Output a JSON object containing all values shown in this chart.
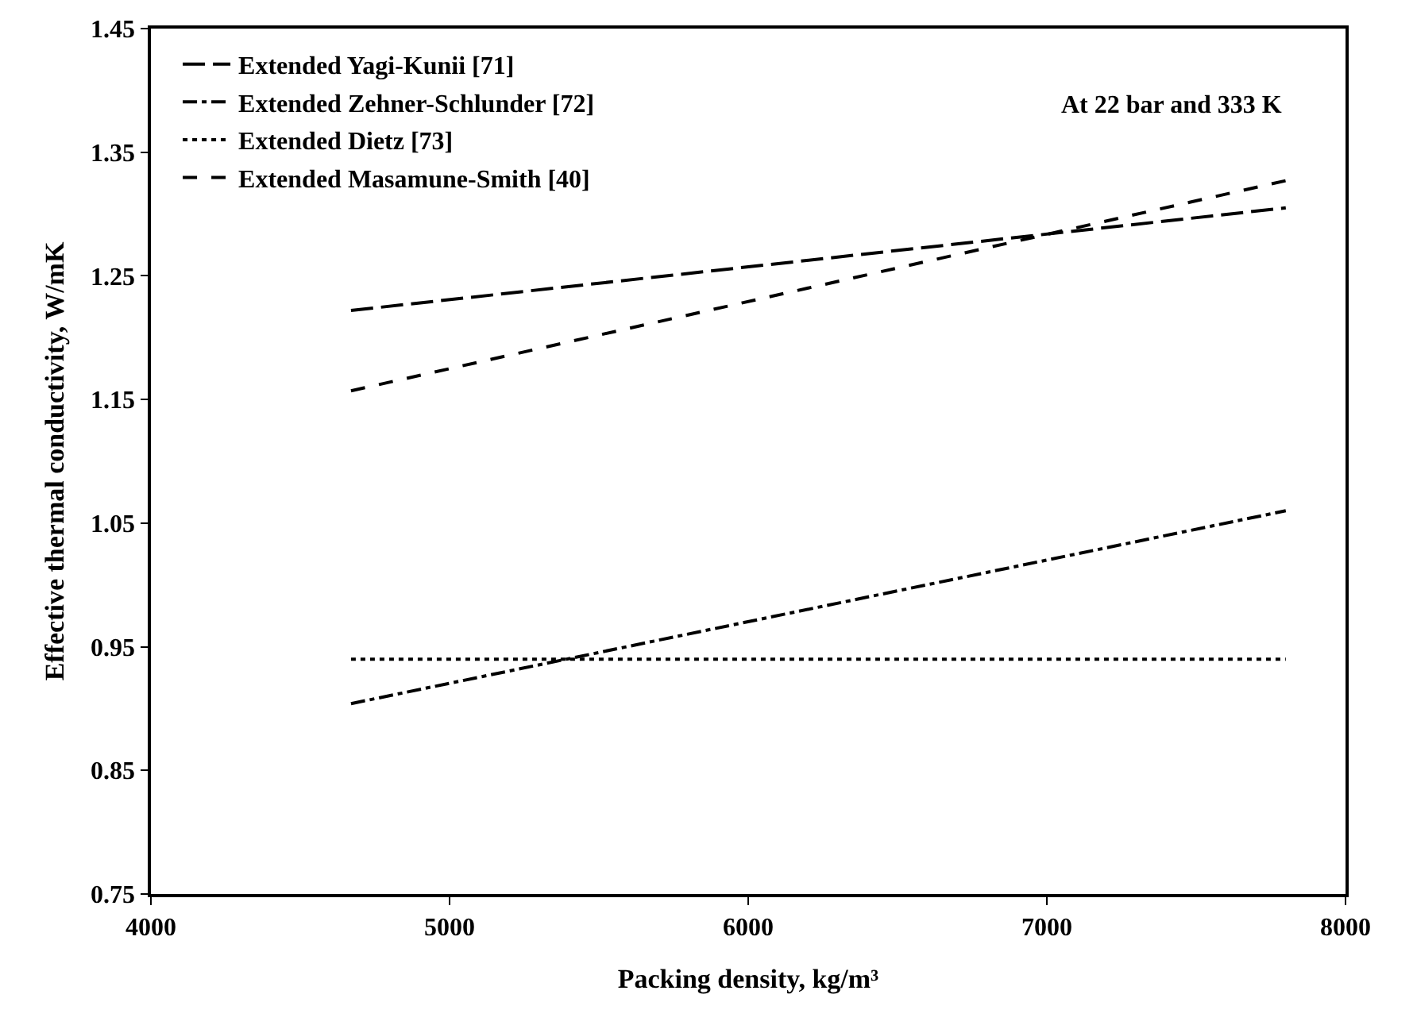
{
  "chart_data": {
    "type": "line",
    "xlabel": "Packing density, kg/m³",
    "ylabel": "Effective thermal conductivity, W/mK",
    "xlim": [
      4000,
      8000
    ],
    "xticks": [
      4000,
      5000,
      6000,
      7000,
      8000
    ],
    "ylim": [
      0.75,
      1.45
    ],
    "yticks": [
      {
        "value": 0.75,
        "label": "0.75"
      },
      {
        "value": 0.85,
        "label": "0.85"
      },
      {
        "value": 0.95,
        "label": "0.95"
      },
      {
        "value": 1.05,
        "label": "1.05"
      },
      {
        "value": 1.15,
        "label": "1.15"
      },
      {
        "value": 1.25,
        "label": "1.25"
      },
      {
        "value": 1.35,
        "label": "1.35"
      },
      {
        "value": 1.45,
        "label": "1.45"
      }
    ],
    "x": [
      4670,
      7800
    ],
    "series": [
      {
        "name": "Extended Yagi-Kunii [71]",
        "color": "#000000",
        "line_style": "longdash",
        "values": [
          1.222,
          1.305
        ]
      },
      {
        "name": "Extended Zehner-Schlunder [72]",
        "color": "#000000",
        "line_style": "dashdot",
        "values": [
          0.904,
          1.06
        ]
      },
      {
        "name": "Extended Dietz [73]",
        "color": "#000000",
        "line_style": "dotted",
        "values": [
          0.94,
          0.94
        ]
      },
      {
        "name": "Extended Masamune-Smith [40]",
        "color": "#000000",
        "line_style": "dashed",
        "values": [
          1.157,
          1.327
        ]
      }
    ],
    "annotations": [
      "At 22 bar and 333 K"
    ],
    "grid": false,
    "legend": "top left",
    "marker": "none"
  }
}
